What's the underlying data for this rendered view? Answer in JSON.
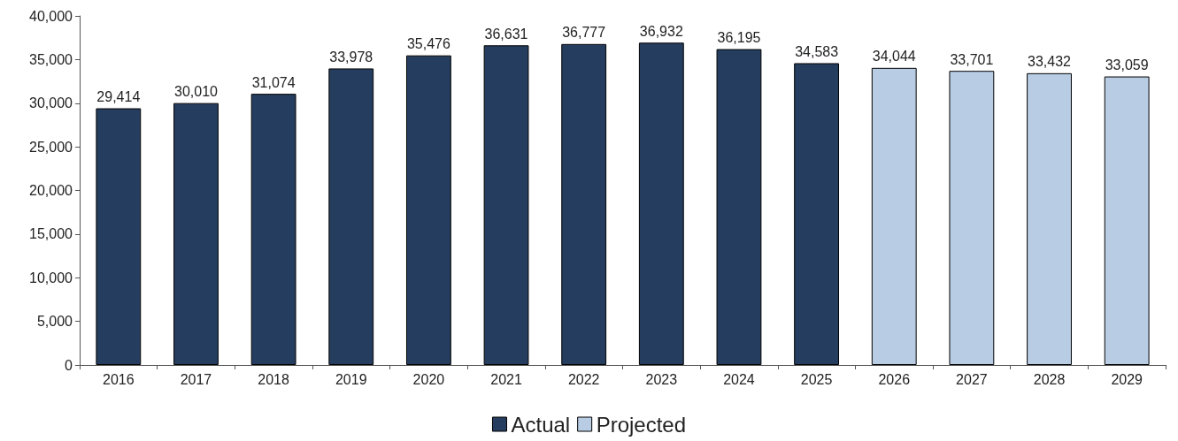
{
  "chart_data": {
    "type": "bar",
    "categories": [
      "2016",
      "2017",
      "2018",
      "2019",
      "2020",
      "2021",
      "2022",
      "2023",
      "2024",
      "2025",
      "2026",
      "2027",
      "2028",
      "2029"
    ],
    "series": [
      {
        "name": "Actual",
        "color": "#253d5e",
        "values": [
          29414,
          30010,
          31074,
          33978,
          35476,
          36631,
          36777,
          36932,
          36195,
          34583,
          null,
          null,
          null,
          null
        ],
        "value_labels": [
          "29,414",
          "30,010",
          "31,074",
          "33,978",
          "35,476",
          "36,631",
          "36,777",
          "36,932",
          "36,195",
          "34,583",
          null,
          null,
          null,
          null
        ]
      },
      {
        "name": "Projected",
        "color": "#b8cce4",
        "values": [
          null,
          null,
          null,
          null,
          null,
          null,
          null,
          null,
          null,
          null,
          34044,
          33701,
          33432,
          33059
        ],
        "value_labels": [
          null,
          null,
          null,
          null,
          null,
          null,
          null,
          null,
          null,
          null,
          "34,044",
          "33,701",
          "33,432",
          "33,059"
        ]
      }
    ],
    "stacked": true,
    "legend": "bottom",
    "grid": false,
    "ylim": [
      0,
      40000
    ],
    "yticks": [
      0,
      {
        "value": 5000,
        "label": "5,000"
      },
      {
        "value": 10000,
        "label": "10,000"
      },
      {
        "value": 15000,
        "label": "15,000"
      },
      {
        "value": 20000,
        "label": "20,000"
      },
      {
        "value": 25000,
        "label": "25,000"
      },
      {
        "value": 30000,
        "label": "30,000"
      },
      {
        "value": 35000,
        "label": "35,000"
      },
      {
        "value": 40000,
        "label": "40,000"
      }
    ]
  }
}
